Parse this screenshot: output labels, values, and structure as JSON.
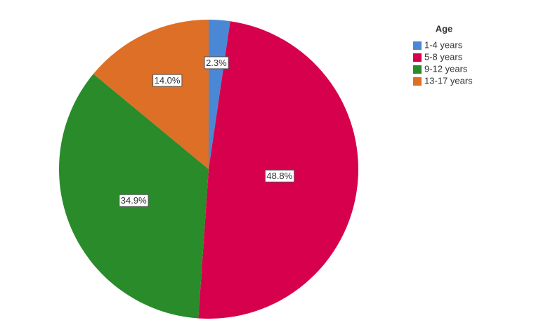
{
  "chart_data": {
    "type": "pie",
    "legend_title": "Age",
    "categories": [
      "1-4 years",
      "5-8 years",
      "9-12 years",
      "13-17 years"
    ],
    "values": [
      2.3,
      48.8,
      34.9,
      14.0
    ],
    "value_labels": [
      "2.3%",
      "48.8%",
      "34.9%",
      "14.0%"
    ],
    "colors": [
      "#4a88d6",
      "#d7004c",
      "#2a8b2a",
      "#de6f27"
    ],
    "legend": "upper right"
  }
}
